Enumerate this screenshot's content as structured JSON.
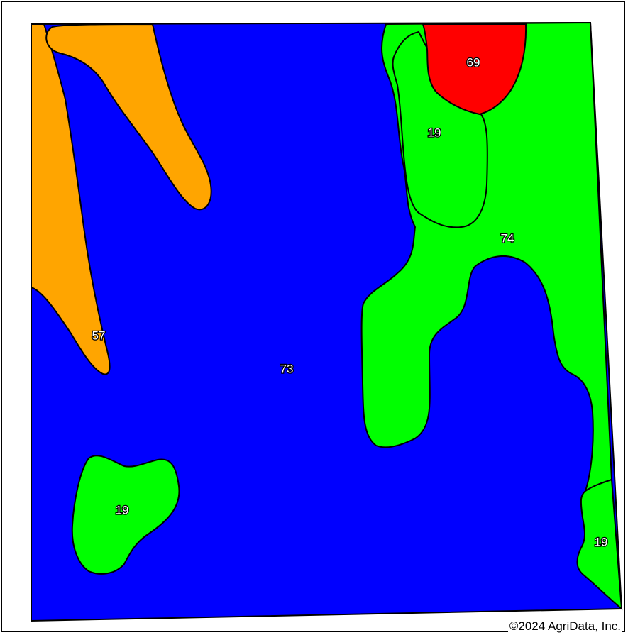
{
  "map": {
    "colors": {
      "blue": "#0000ff",
      "green": "#00ff00",
      "orange": "#ffa500",
      "red": "#ff0000",
      "outline": "#000000"
    },
    "units": [
      {
        "symbol": "73",
        "color": "blue"
      },
      {
        "symbol": "57",
        "color": "orange"
      },
      {
        "symbol": "69",
        "color": "red"
      },
      {
        "symbol": "74",
        "color": "green"
      },
      {
        "symbol": "19",
        "color": "green"
      },
      {
        "symbol": "19",
        "color": "green"
      },
      {
        "symbol": "19",
        "color": "green"
      }
    ],
    "copyright": "©2024 AgriData, Inc."
  }
}
